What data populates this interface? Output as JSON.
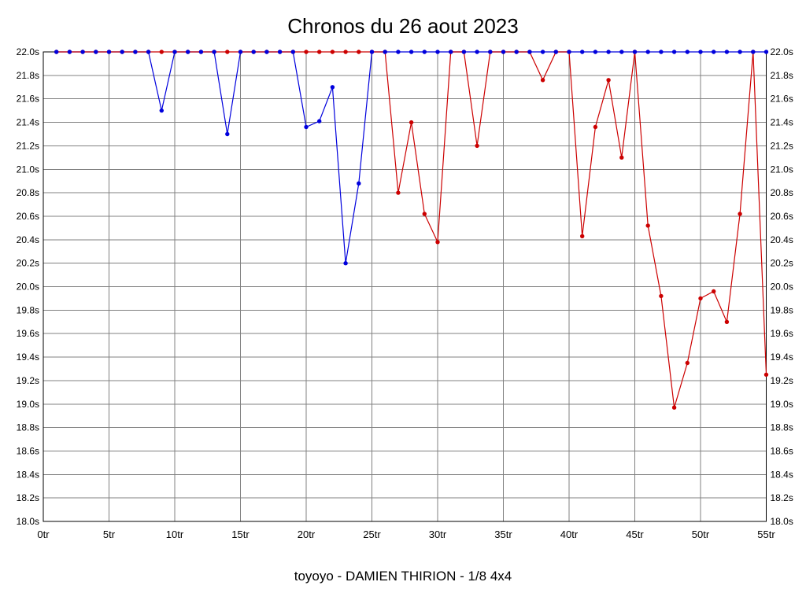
{
  "title": "Chronos du 26 aout 2023",
  "caption": "toyoyo - DAMIEN THIRION - 1/8 4x4",
  "chart_data": {
    "type": "line",
    "title": "Chronos du 26 aout 2023",
    "caption": "toyoyo - DAMIEN THIRION - 1/8 4x4",
    "xlabel": "",
    "ylabel": "",
    "x_unit": "tr",
    "y_unit": "s",
    "xlim": [
      0,
      55
    ],
    "ylim": [
      18.0,
      22.0
    ],
    "grid": true,
    "legend": "none",
    "x_ticks": {
      "values": [
        0,
        5,
        10,
        15,
        20,
        25,
        30,
        35,
        40,
        45,
        50,
        55
      ],
      "labels": [
        "0tr",
        "5tr",
        "10tr",
        "15tr",
        "20tr",
        "25tr",
        "30tr",
        "35tr",
        "40tr",
        "45tr",
        "50tr",
        "55tr"
      ]
    },
    "y_ticks": {
      "values": [
        22.0,
        21.8,
        21.6,
        21.4,
        21.2,
        21.0,
        20.8,
        20.6,
        20.4,
        20.2,
        20.0,
        19.8,
        19.6,
        19.4,
        19.2,
        19.0,
        18.8,
        18.6,
        18.4,
        18.2,
        18.0
      ],
      "labels": [
        "22.0s",
        "21.8s",
        "21.6s",
        "21.4s",
        "21.2s",
        "21.0s",
        "20.8s",
        "20.6s",
        "20.4s",
        "20.2s",
        "20.0s",
        "19.8s",
        "19.6s",
        "19.4s",
        "19.2s",
        "19.0s",
        "18.8s",
        "18.6s",
        "18.4s",
        "18.2s",
        "18.0s"
      ]
    },
    "series": [
      {
        "name": "blue",
        "color": "#0000dd",
        "marker": "circle",
        "x": [
          1,
          2,
          3,
          4,
          5,
          6,
          7,
          8,
          9,
          10,
          11,
          12,
          13,
          14,
          15,
          16,
          17,
          18,
          19,
          20,
          21,
          22,
          23,
          24,
          25,
          26,
          27,
          28,
          29,
          30,
          31,
          32,
          33,
          34,
          35,
          36,
          37,
          38,
          39,
          40,
          41,
          42,
          43,
          44,
          45,
          46,
          47,
          48,
          49,
          50,
          51,
          52,
          53,
          54,
          55
        ],
        "y": [
          22.0,
          22.0,
          22.0,
          22.0,
          22.0,
          22.0,
          22.0,
          22.0,
          21.5,
          22.0,
          22.0,
          22.0,
          22.0,
          21.3,
          22.0,
          22.0,
          22.0,
          22.0,
          22.0,
          21.36,
          21.41,
          21.7,
          20.2,
          20.88,
          22.0,
          22.0,
          22.0,
          22.0,
          22.0,
          22.0,
          22.0,
          22.0,
          22.0,
          22.0,
          22.0,
          22.0,
          22.0,
          22.0,
          22.0,
          22.0,
          22.0,
          22.0,
          22.0,
          22.0,
          22.0,
          22.0,
          22.0,
          22.0,
          22.0,
          22.0,
          22.0,
          22.0,
          22.0,
          22.0,
          22.0
        ]
      },
      {
        "name": "red",
        "color": "#cc0000",
        "marker": "circle",
        "x": [
          1,
          2,
          3,
          4,
          5,
          6,
          7,
          8,
          9,
          10,
          11,
          12,
          13,
          14,
          15,
          16,
          17,
          18,
          19,
          20,
          21,
          22,
          23,
          24,
          25,
          26,
          27,
          28,
          29,
          30,
          31,
          32,
          33,
          34,
          35,
          36,
          37,
          38,
          39,
          40,
          41,
          42,
          43,
          44,
          45,
          46,
          47,
          48,
          49,
          50,
          51,
          52,
          53,
          54,
          55
        ],
        "y": [
          22.0,
          22.0,
          22.0,
          22.0,
          22.0,
          22.0,
          22.0,
          22.0,
          22.0,
          22.0,
          22.0,
          22.0,
          22.0,
          22.0,
          22.0,
          22.0,
          22.0,
          22.0,
          22.0,
          22.0,
          22.0,
          22.0,
          22.0,
          22.0,
          22.0,
          22.0,
          20.8,
          21.4,
          20.62,
          20.38,
          22.0,
          22.0,
          21.2,
          22.0,
          22.0,
          22.0,
          22.0,
          21.76,
          22.0,
          22.0,
          20.43,
          21.36,
          21.76,
          21.1,
          22.0,
          20.52,
          19.92,
          18.97,
          19.35,
          19.9,
          19.96,
          19.7,
          20.62,
          22.0,
          19.25
        ]
      }
    ]
  }
}
